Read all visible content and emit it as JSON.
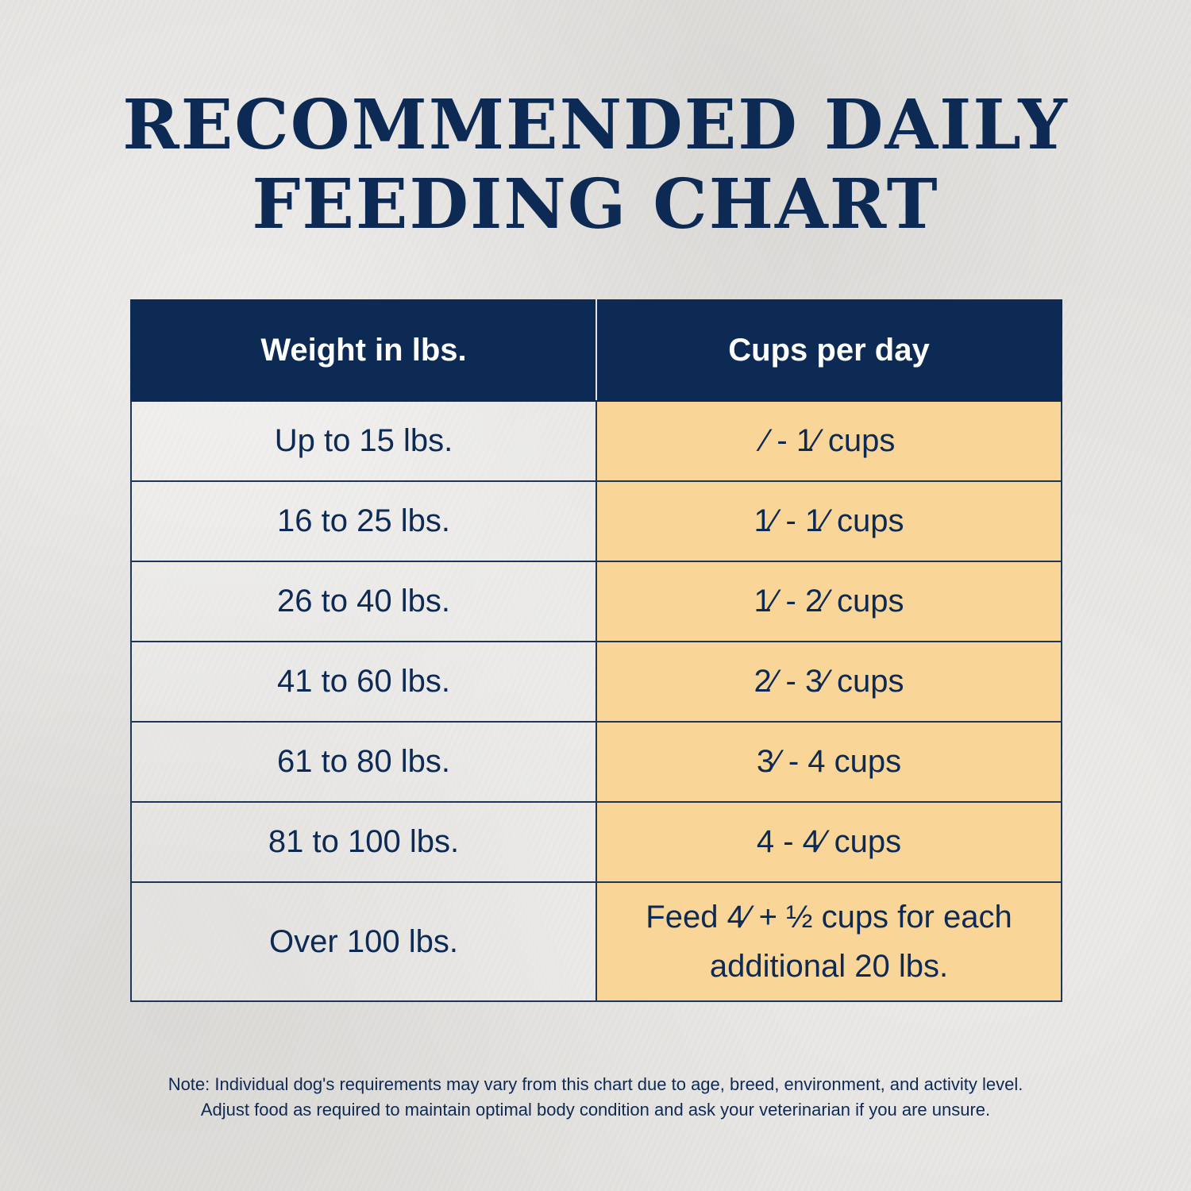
{
  "title": {
    "line1": "RECOMMENDED DAILY",
    "line2": "FEEDING CHART"
  },
  "colors": {
    "navy": "#0c2a54",
    "cups_cell": "#f9d597",
    "background": "#e4e2df"
  },
  "chart_data": {
    "type": "table",
    "title": "RECOMMENDED DAILY FEEDING CHART",
    "columns": [
      "Weight in lbs.",
      "Cups per day"
    ],
    "rows": [
      {
        "weight": "Up to 15 lbs.",
        "cups": "⁄ - 1⁄ cups"
      },
      {
        "weight": "16 to 25 lbs.",
        "cups": "1⁄ - 1⁄ cups"
      },
      {
        "weight": "26 to 40 lbs.",
        "cups": "1⁄ - 2⁄ cups"
      },
      {
        "weight": "41 to 60 lbs.",
        "cups": "2⁄ - 3⁄ cups"
      },
      {
        "weight": "61 to 80 lbs.",
        "cups": "3⁄ - 4 cups"
      },
      {
        "weight": "81 to 100 lbs.",
        "cups": "4 - 4⁄ cups"
      },
      {
        "weight": "Over 100 lbs.",
        "cups": "Feed 4⁄ + ½ cups for each additional 20 lbs."
      }
    ]
  },
  "note": {
    "line1": "Note: Individual dog's requirements may vary from this chart due to age, breed, environment, and activity level.",
    "line2": "Adjust food as required to maintain optimal body condition and ask your veterinarian if you are unsure."
  }
}
